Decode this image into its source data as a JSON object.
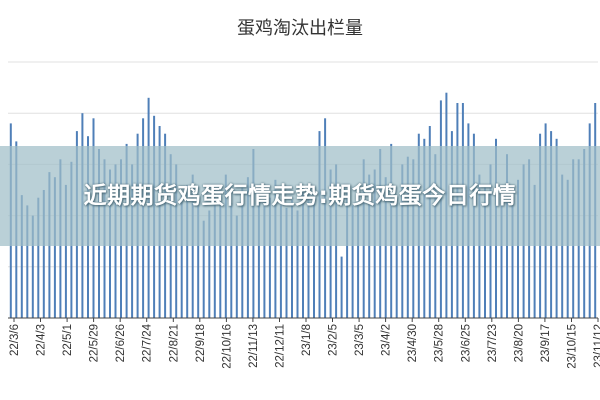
{
  "overlay_caption": "近期期货鸡蛋行情走势:期货鸡蛋今日行情",
  "colors": {
    "bar": "#4f7fb8",
    "grid": "#e0e0e0",
    "axis": "#444444",
    "overlay": "#a0bec8"
  },
  "chart_data": {
    "type": "bar",
    "title": "蛋鸡淘汰出栏量",
    "xlabel": "",
    "ylabel": "",
    "grid": true,
    "ylim": [
      0,
      100
    ],
    "tick_labels": [
      "22/3/6",
      "22/4/3",
      "22/5/1",
      "22/5/29",
      "22/6/26",
      "22/7/24",
      "22/8/21",
      "22/9/18",
      "22/10/16",
      "22/11/13",
      "22/12/11",
      "23/1/8",
      "23/2/5",
      "23/3/5",
      "23/4/2",
      "23/4/30",
      "23/5/28",
      "23/6/25",
      "23/7/23",
      "23/8/20",
      "23/9/17",
      "23/10/15",
      "23/11/12"
    ],
    "values": [
      76,
      69,
      48,
      44,
      40,
      47,
      50,
      57,
      55,
      62,
      52,
      61,
      73,
      80,
      71,
      78,
      66,
      62,
      58,
      60,
      62,
      68,
      60,
      72,
      78,
      86,
      79,
      75,
      72,
      64,
      60,
      48,
      52,
      56,
      44,
      38,
      42,
      50,
      48,
      56,
      45,
      40,
      52,
      55,
      66,
      50,
      46,
      47,
      54,
      44,
      43,
      46,
      42,
      50,
      49,
      46,
      73,
      78,
      58,
      60,
      24,
      50,
      44,
      48,
      62,
      56,
      58,
      66,
      55,
      68,
      45,
      60,
      63,
      62,
      72,
      70,
      75,
      64,
      85,
      88,
      73,
      84,
      84,
      76,
      72,
      56,
      52,
      60,
      70,
      44,
      64,
      48,
      54,
      60,
      62,
      52,
      72,
      76,
      73,
      70,
      56,
      54,
      62,
      62,
      66,
      76,
      84
    ]
  }
}
